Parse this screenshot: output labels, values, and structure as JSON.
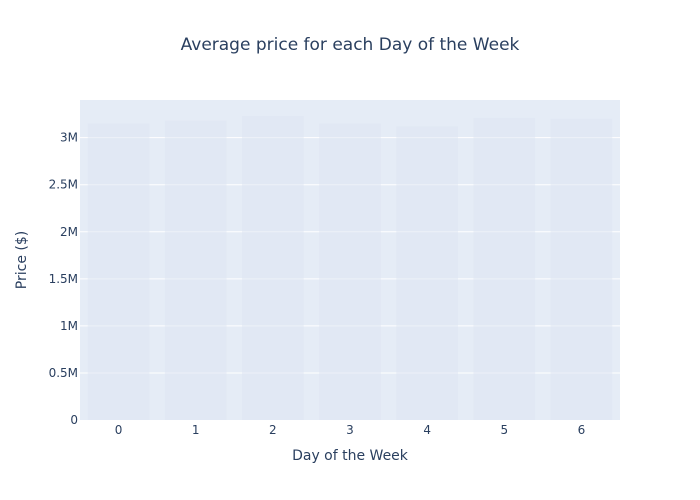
{
  "chart_data": {
    "type": "bar",
    "title": "Average price for each Day of the Week",
    "xlabel": "Day of the Week",
    "ylabel": "Price ($)",
    "categories": [
      "0",
      "1",
      "2",
      "3",
      "4",
      "5",
      "6"
    ],
    "values": [
      3150000,
      3180000,
      3230000,
      3150000,
      3120000,
      3210000,
      3200000
    ],
    "ylim": [
      0,
      3400000
    ],
    "yticks": [
      {
        "value": 0,
        "label": "0"
      },
      {
        "value": 500000,
        "label": "0.5M"
      },
      {
        "value": 1000000,
        "label": "1M"
      },
      {
        "value": 1500000,
        "label": "1.5M"
      },
      {
        "value": 2000000,
        "label": "2M"
      },
      {
        "value": 2500000,
        "label": "2.5M"
      },
      {
        "value": 3000000,
        "label": "3M"
      }
    ],
    "grid": true,
    "colors": {
      "plot_background": "#e5ecf6",
      "grid": "#ffffff",
      "bar": "#dfe6f3",
      "text": "#2a3f5f"
    }
  }
}
